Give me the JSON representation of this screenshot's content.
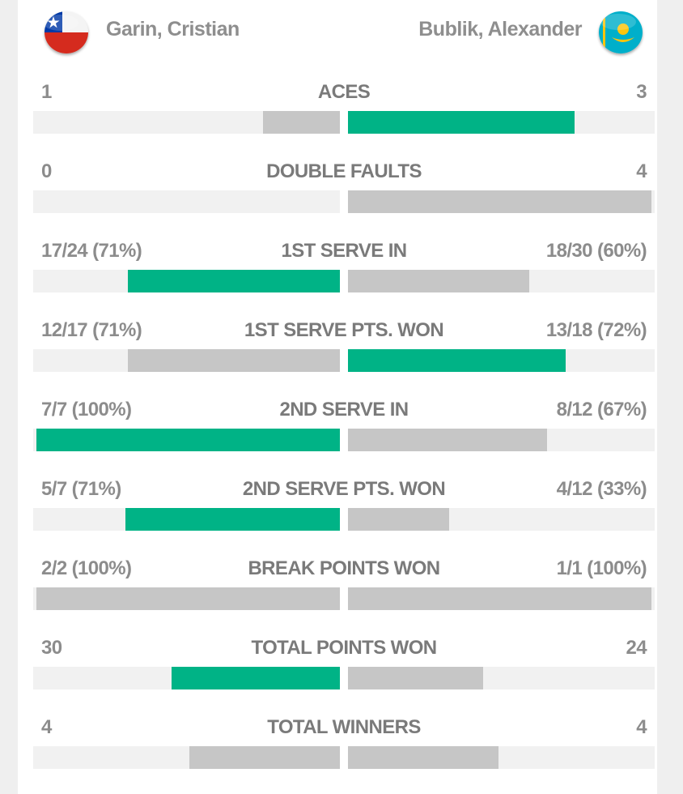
{
  "colors": {
    "win": "#00b386",
    "lose": "#c6c6c6",
    "track": "#f1f1f1"
  },
  "players": {
    "left": {
      "name": "Garin, Cristian",
      "flag_icon": "chile-flag-icon"
    },
    "right": {
      "name": "Bublik, Alexander",
      "flag_icon": "kazakhstan-flag-icon"
    }
  },
  "stats": [
    {
      "label": "ACES",
      "left": "1",
      "right": "3",
      "left_fill": 0.25,
      "right_fill": 0.74,
      "left_win": false,
      "right_win": true
    },
    {
      "label": "DOUBLE FAULTS",
      "left": "0",
      "right": "4",
      "left_fill": 0.0,
      "right_fill": 0.99,
      "left_win": false,
      "right_win": false
    },
    {
      "label": "1ST SERVE IN",
      "left": "17/24 (71%)",
      "right": "18/30 (60%)",
      "left_fill": 0.69,
      "right_fill": 0.59,
      "left_win": true,
      "right_win": false
    },
    {
      "label": "1ST SERVE PTS. WON",
      "left": "12/17 (71%)",
      "right": "13/18 (72%)",
      "left_fill": 0.69,
      "right_fill": 0.71,
      "left_win": false,
      "right_win": true
    },
    {
      "label": "2ND SERVE IN",
      "left": "7/7 (100%)",
      "right": "8/12 (67%)",
      "left_fill": 0.99,
      "right_fill": 0.65,
      "left_win": true,
      "right_win": false
    },
    {
      "label": "2ND SERVE PTS. WON",
      "left": "5/7 (71%)",
      "right": "4/12 (33%)",
      "left_fill": 0.7,
      "right_fill": 0.33,
      "left_win": true,
      "right_win": false
    },
    {
      "label": "BREAK POINTS WON",
      "left": "2/2 (100%)",
      "right": "1/1 (100%)",
      "left_fill": 0.99,
      "right_fill": 0.99,
      "left_win": false,
      "right_win": false
    },
    {
      "label": "TOTAL POINTS WON",
      "left": "30",
      "right": "24",
      "left_fill": 0.55,
      "right_fill": 0.44,
      "left_win": true,
      "right_win": false
    },
    {
      "label": "TOTAL WINNERS",
      "left": "4",
      "right": "4",
      "left_fill": 0.49,
      "right_fill": 0.49,
      "left_win": false,
      "right_win": false
    }
  ]
}
